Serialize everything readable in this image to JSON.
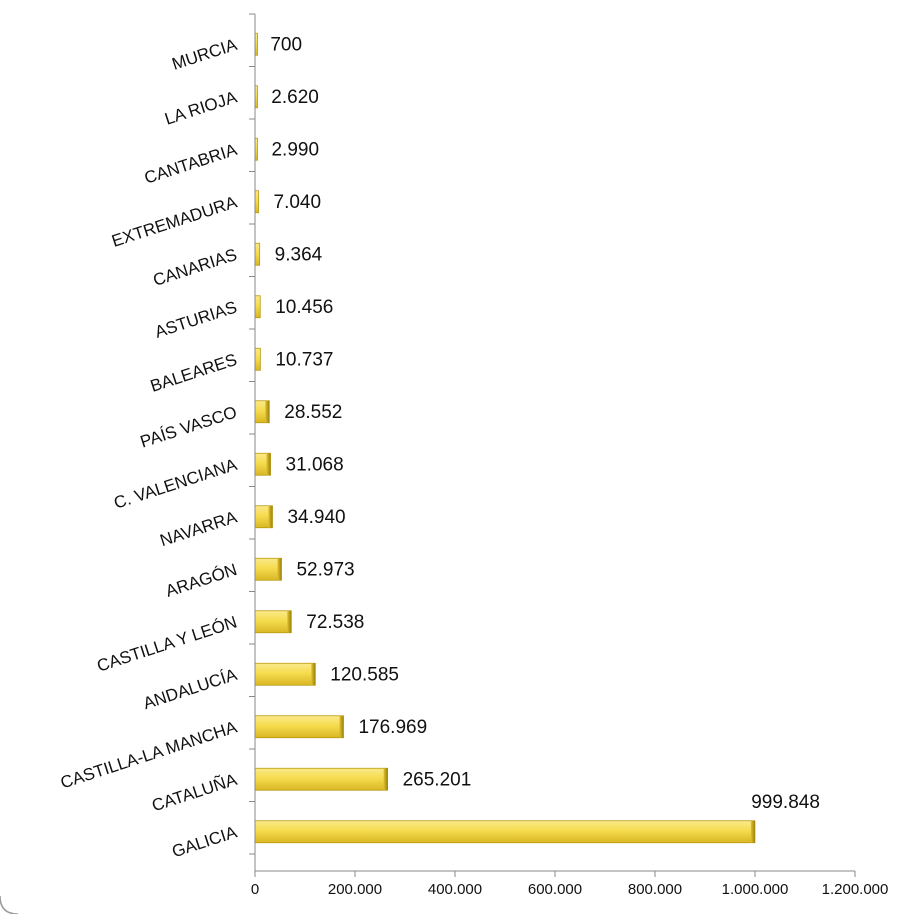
{
  "chart_data": {
    "type": "bar",
    "orientation": "horizontal",
    "categories": [
      "GALICIA",
      "CATALUÑA",
      "CASTILLA-LA MANCHA",
      "ANDALUCÍA",
      "CASTILLA Y LEÓN",
      "ARAGÓN",
      "NAVARRA",
      "C. VALENCIANA",
      "PAÍS VASCO",
      "BALEARES",
      "ASTURIAS",
      "CANARIAS",
      "EXTREMADURA",
      "CANTABRIA",
      "LA RIOJA",
      "MURCIA"
    ],
    "values": [
      999848,
      265201,
      176969,
      120585,
      72538,
      52973,
      34940,
      31068,
      28552,
      10737,
      10456,
      9364,
      7040,
      2990,
      2620,
      700
    ],
    "value_labels": [
      "999.848",
      "265.201",
      "176.969",
      "120.585",
      "72.538",
      "52.973",
      "34.940",
      "31.068",
      "28.552",
      "10.737",
      "10.456",
      "9.364",
      "7.040",
      "2.990",
      "2.620",
      "700"
    ],
    "xlim": [
      0,
      1200000
    ],
    "x_ticks": [
      0,
      200000,
      400000,
      600000,
      800000,
      1000000,
      1200000
    ],
    "x_tick_labels": [
      "0",
      "200.000",
      "400.000",
      "600.000",
      "800.000",
      "1.000.000",
      "1.200.000"
    ],
    "title": "",
    "xlabel": "",
    "ylabel": "",
    "grid": false,
    "legend": "none",
    "bar_color": "#f5dc4e",
    "bar_edge_color": "#b89a10",
    "axis_color": "#8a8a8a"
  }
}
